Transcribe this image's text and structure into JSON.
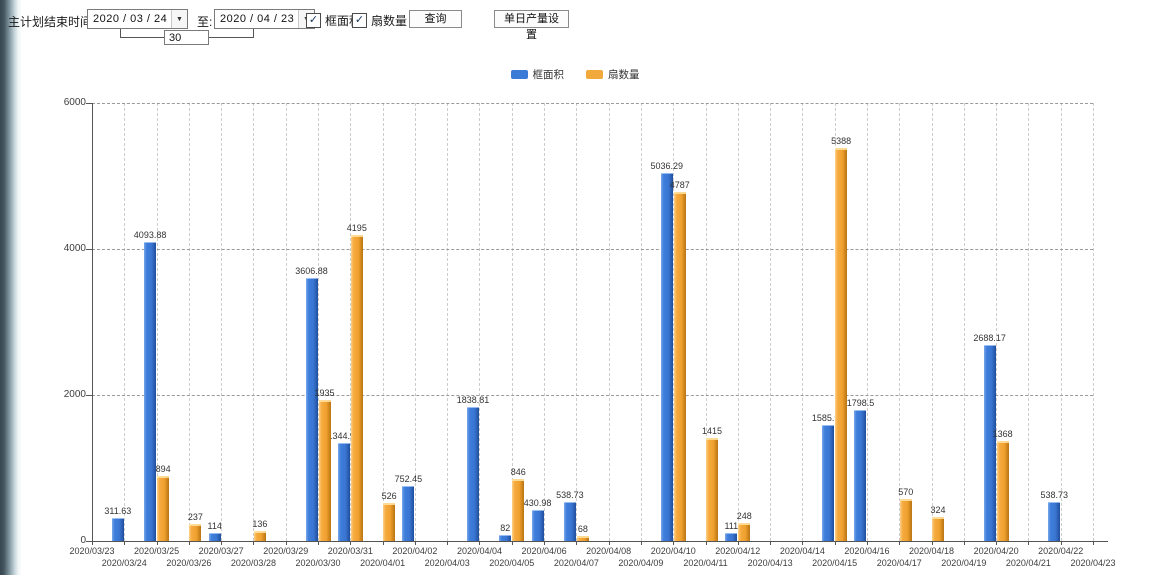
{
  "toolbar": {
    "plan_end_label": "主计划结束时间:",
    "date_from": "2020 / 03 / 24",
    "to_label": "至:",
    "date_to": "2020 / 04 / 23",
    "span_days": "30",
    "checkbox_frame_area": "框面积",
    "checkbox_sash_count": "扇数量",
    "query_button": "查询",
    "daily_output_button": "单日产量设置"
  },
  "colors": {
    "frame_area_blue": "#3B7BD8",
    "sash_count_orange": "#F2A93B"
  },
  "chart_data": {
    "type": "bar",
    "title": "",
    "xlabel": "",
    "ylabel": "",
    "ylim": [
      0,
      6000
    ],
    "yticks": [
      0,
      2000,
      4000,
      6000
    ],
    "grid": true,
    "legend_position": "top",
    "categories": [
      "2020/03/23",
      "2020/03/24",
      "2020/03/25",
      "2020/03/26",
      "2020/03/27",
      "2020/03/28",
      "2020/03/29",
      "2020/03/30",
      "2020/03/31",
      "2020/04/01",
      "2020/04/02",
      "2020/04/03",
      "2020/04/04",
      "2020/04/05",
      "2020/04/06",
      "2020/04/07",
      "2020/04/08",
      "2020/04/09",
      "2020/04/10",
      "2020/04/11",
      "2020/04/12",
      "2020/04/13",
      "2020/04/14",
      "2020/04/15",
      "2020/04/16",
      "2020/04/17",
      "2020/04/18",
      "2020/04/19",
      "2020/04/20",
      "2020/04/21",
      "2020/04/22",
      "2020/04/23"
    ],
    "series": [
      {
        "name": "框面积",
        "color": "#3B7BD8",
        "values": [
          null,
          311.63,
          4093.88,
          null,
          114,
          null,
          null,
          3606.88,
          1344.95,
          null,
          752.45,
          null,
          1838.81,
          82,
          430.98,
          538.73,
          null,
          null,
          5036.29,
          null,
          111,
          null,
          null,
          1585.96,
          1798.5,
          null,
          null,
          null,
          2688.17,
          null,
          538.73,
          null
        ]
      },
      {
        "name": "扇数量",
        "color": "#F2A93B",
        "values": [
          null,
          null,
          894,
          237,
          null,
          136,
          null,
          1935,
          4195,
          526,
          null,
          null,
          null,
          846,
          null,
          68,
          null,
          null,
          4787,
          1415,
          248,
          null,
          null,
          5388,
          null,
          570,
          324,
          null,
          1368,
          null,
          null,
          null
        ]
      }
    ]
  }
}
